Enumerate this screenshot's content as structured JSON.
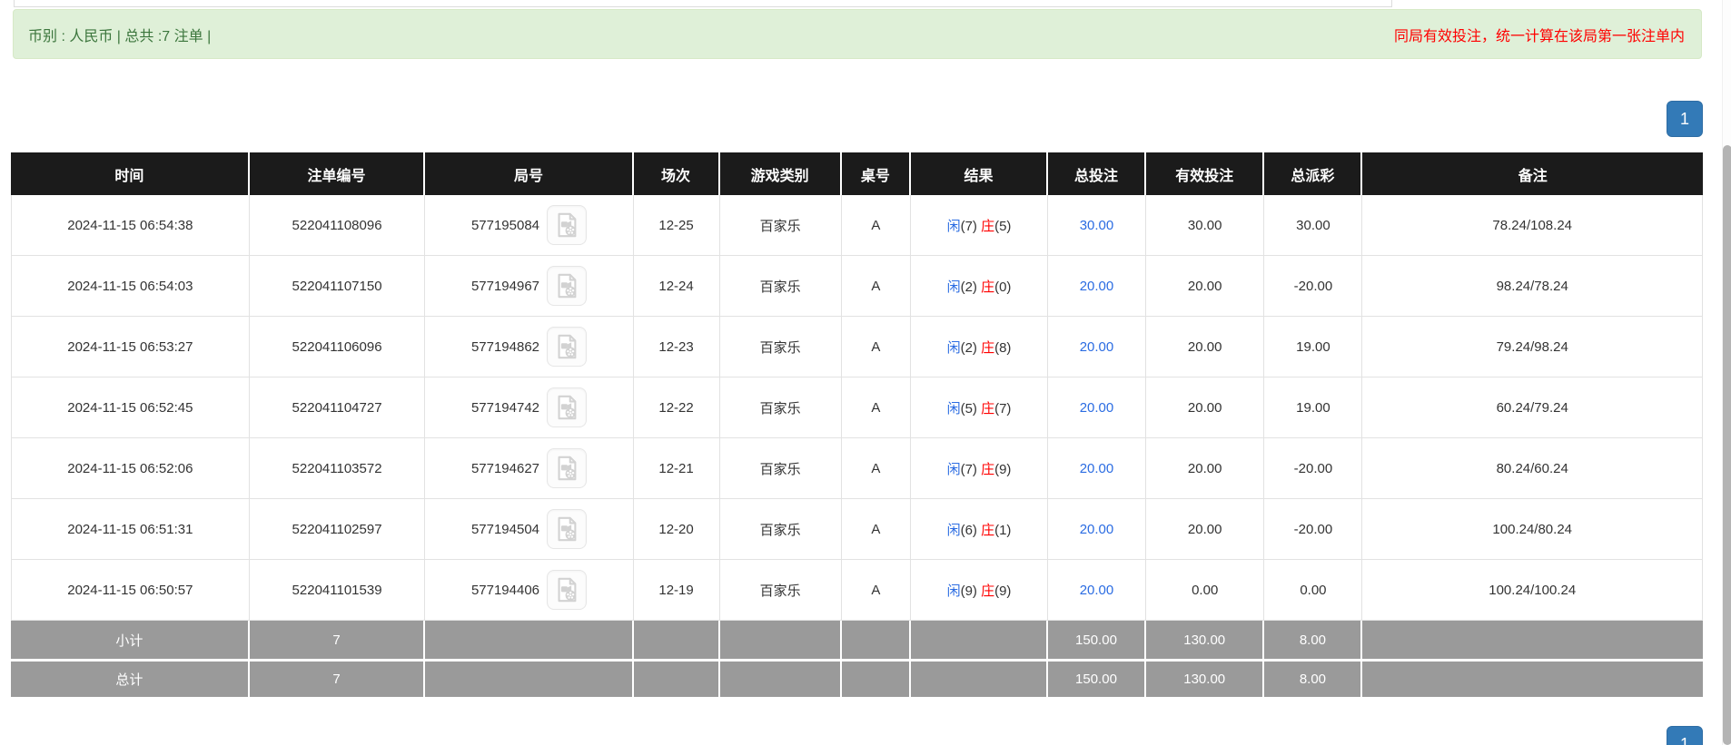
{
  "banner": {
    "summary": "币别 : 人民币 | 总共 :7 注单 |",
    "notice": "同局有效投注，统一计算在该局第一张注单内"
  },
  "pagination": {
    "current_page": "1"
  },
  "icons": {
    "video_replay": "video-file-icon"
  },
  "colors": {
    "accent_blue": "#337ab7",
    "link_blue": "#2b6ce2",
    "alert_red": "#ff0000",
    "banner_bg": "#dff0d8",
    "banner_text": "#3c763d",
    "header_bg": "#1b1b1b",
    "footer_bg": "#9a9a9a"
  },
  "table": {
    "columns": [
      "时间",
      "注单编号",
      "局号",
      "场次",
      "游戏类别",
      "桌号",
      "结果",
      "总投注",
      "有效投注",
      "总派彩",
      "备注"
    ],
    "rows": [
      {
        "time": "2024-11-15 06:54:38",
        "bet_no": "522041108096",
        "round_no": "577195084",
        "session": "12-25",
        "game_type": "百家乐",
        "table_no": "A",
        "result": {
          "player_label": "闲",
          "player_score": "(7)",
          "banker_label": "庄",
          "banker_score": "(5)"
        },
        "total_bet": "30.00",
        "valid_bet": "30.00",
        "payout": "30.00",
        "remark": "78.24/108.24"
      },
      {
        "time": "2024-11-15 06:54:03",
        "bet_no": "522041107150",
        "round_no": "577194967",
        "session": "12-24",
        "game_type": "百家乐",
        "table_no": "A",
        "result": {
          "player_label": "闲",
          "player_score": "(2)",
          "banker_label": "庄",
          "banker_score": "(0)"
        },
        "total_bet": "20.00",
        "valid_bet": "20.00",
        "payout": "-20.00",
        "remark": "98.24/78.24"
      },
      {
        "time": "2024-11-15 06:53:27",
        "bet_no": "522041106096",
        "round_no": "577194862",
        "session": "12-23",
        "game_type": "百家乐",
        "table_no": "A",
        "result": {
          "player_label": "闲",
          "player_score": "(2)",
          "banker_label": "庄",
          "banker_score": "(8)"
        },
        "total_bet": "20.00",
        "valid_bet": "20.00",
        "payout": "19.00",
        "remark": "79.24/98.24"
      },
      {
        "time": "2024-11-15 06:52:45",
        "bet_no": "522041104727",
        "round_no": "577194742",
        "session": "12-22",
        "game_type": "百家乐",
        "table_no": "A",
        "result": {
          "player_label": "闲",
          "player_score": "(5)",
          "banker_label": "庄",
          "banker_score": "(7)"
        },
        "total_bet": "20.00",
        "valid_bet": "20.00",
        "payout": "19.00",
        "remark": "60.24/79.24"
      },
      {
        "time": "2024-11-15 06:52:06",
        "bet_no": "522041103572",
        "round_no": "577194627",
        "session": "12-21",
        "game_type": "百家乐",
        "table_no": "A",
        "result": {
          "player_label": "闲",
          "player_score": "(7)",
          "banker_label": "庄",
          "banker_score": "(9)"
        },
        "total_bet": "20.00",
        "valid_bet": "20.00",
        "payout": "-20.00",
        "remark": "80.24/60.24"
      },
      {
        "time": "2024-11-15 06:51:31",
        "bet_no": "522041102597",
        "round_no": "577194504",
        "session": "12-20",
        "game_type": "百家乐",
        "table_no": "A",
        "result": {
          "player_label": "闲",
          "player_score": "(6)",
          "banker_label": "庄",
          "banker_score": "(1)"
        },
        "total_bet": "20.00",
        "valid_bet": "20.00",
        "payout": "-20.00",
        "remark": "100.24/80.24"
      },
      {
        "time": "2024-11-15 06:50:57",
        "bet_no": "522041101539",
        "round_no": "577194406",
        "session": "12-19",
        "game_type": "百家乐",
        "table_no": "A",
        "result": {
          "player_label": "闲",
          "player_score": "(9)",
          "banker_label": "庄",
          "banker_score": "(9)"
        },
        "total_bet": "20.00",
        "valid_bet": "0.00",
        "payout": "0.00",
        "remark": "100.24/100.24"
      }
    ],
    "subtotal": {
      "label": "小计",
      "count": "7",
      "total_bet": "150.00",
      "valid_bet": "130.00",
      "payout": "8.00",
      "remark": ""
    },
    "total": {
      "label": "总计",
      "count": "7",
      "total_bet": "150.00",
      "valid_bet": "130.00",
      "payout": "8.00",
      "remark": ""
    }
  }
}
